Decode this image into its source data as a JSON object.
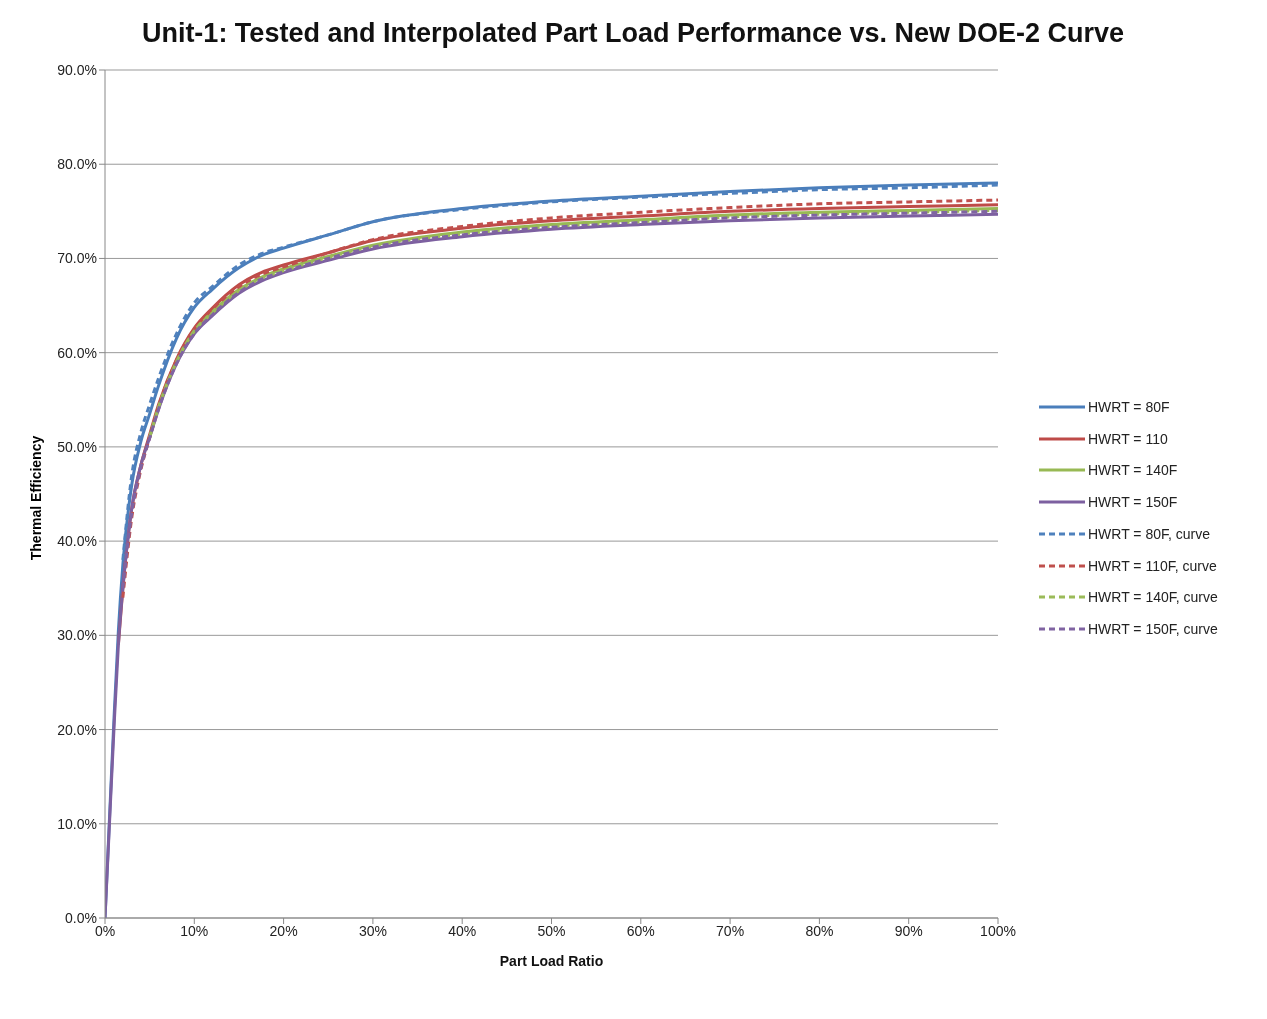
{
  "chart_data": {
    "type": "line",
    "title": "Unit-1: Tested and Interpolated Part Load Performance vs. New DOE-2 Curve",
    "xlabel": "Part Load Ratio",
    "ylabel": "Thermal Efficiency",
    "xlim": [
      0,
      100
    ],
    "ylim": [
      0,
      90
    ],
    "xticks": [
      {
        "value": 0,
        "label": "0%"
      },
      {
        "value": 10,
        "label": "10%"
      },
      {
        "value": 20,
        "label": "20%"
      },
      {
        "value": 30,
        "label": "30%"
      },
      {
        "value": 40,
        "label": "40%"
      },
      {
        "value": 50,
        "label": "50%"
      },
      {
        "value": 60,
        "label": "60%"
      },
      {
        "value": 70,
        "label": "70%"
      },
      {
        "value": 80,
        "label": "80%"
      },
      {
        "value": 90,
        "label": "90%"
      },
      {
        "value": 100,
        "label": "100%"
      }
    ],
    "yticks": [
      {
        "value": 0,
        "label": "0.0%"
      },
      {
        "value": 10,
        "label": "10.0%"
      },
      {
        "value": 20,
        "label": "20.0%"
      },
      {
        "value": 30,
        "label": "30.0%"
      },
      {
        "value": 40,
        "label": "40.0%"
      },
      {
        "value": 50,
        "label": "50.0%"
      },
      {
        "value": 60,
        "label": "60.0%"
      },
      {
        "value": 70,
        "label": "70.0%"
      },
      {
        "value": 80,
        "label": "80.0%"
      },
      {
        "value": 90,
        "label": "90.0%"
      }
    ],
    "grid": "y",
    "legend": "right",
    "series": [
      {
        "name": "HWRT = 80F",
        "color": "#4a7ebb",
        "line_style": "solid",
        "x": [
          0,
          0.5,
          1,
          1.5,
          2,
          3,
          4,
          5,
          6,
          8,
          10,
          12,
          15,
          17.5,
          20,
          25,
          30,
          40,
          50,
          60,
          70,
          80,
          90,
          100
        ],
        "values": [
          0,
          10.5,
          21,
          30.5,
          37.5,
          46,
          50.5,
          53.5,
          56.5,
          61.5,
          64.8,
          66.7,
          69,
          70.3,
          71.1,
          72.5,
          73.9,
          75.3,
          76.1,
          76.6,
          77.1,
          77.5,
          77.8,
          78.0
        ]
      },
      {
        "name": "HWRT = 110",
        "color": "#be4b48",
        "line_style": "solid",
        "x": [
          1.5,
          2,
          3,
          4,
          5,
          6,
          8,
          10,
          12,
          15,
          17.5,
          20,
          25,
          30,
          40,
          50,
          60,
          70,
          80,
          90,
          100
        ],
        "values": [
          29,
          35,
          43.5,
          48,
          51.3,
          54.5,
          59.3,
          62.6,
          64.7,
          67.2,
          68.5,
          69.3,
          70.6,
          71.9,
          73.2,
          74.0,
          74.5,
          75.0,
          75.3,
          75.5,
          75.7
        ]
      },
      {
        "name": "HWRT = 140F",
        "color": "#98b954",
        "line_style": "solid",
        "x": [
          5,
          6,
          8,
          10,
          12,
          15,
          17.5,
          20,
          25,
          30,
          40,
          50,
          60,
          70,
          80,
          90,
          100
        ],
        "values": [
          51,
          54.2,
          59,
          62.3,
          64.3,
          66.7,
          68,
          68.9,
          70.2,
          71.4,
          72.8,
          73.6,
          74.1,
          74.6,
          74.9,
          75.1,
          75.3
        ]
      },
      {
        "name": "HWRT = 150F",
        "color": "#7d60a0",
        "line_style": "solid",
        "x": [
          0,
          0.5,
          1,
          1.5,
          2,
          3,
          4,
          5,
          6,
          8,
          10,
          12,
          15,
          17.5,
          20,
          25,
          30,
          40,
          50,
          60,
          70,
          80,
          90,
          100
        ],
        "values": [
          0,
          10,
          20,
          29,
          35,
          43.5,
          48,
          51,
          54,
          58.8,
          62,
          63.9,
          66.3,
          67.6,
          68.5,
          69.8,
          71.0,
          72.3,
          73.1,
          73.6,
          74.0,
          74.3,
          74.5,
          74.7
        ]
      },
      {
        "name": "HWRT = 80F, curve",
        "color": "#4f81bd",
        "line_style": "dashed",
        "x": [
          2,
          3,
          4,
          5,
          6,
          8,
          10,
          12,
          15,
          17.5,
          20,
          25,
          30,
          40,
          50,
          60,
          70,
          80,
          90,
          100
        ],
        "values": [
          38,
          47,
          51.5,
          54.5,
          57.3,
          62,
          65.3,
          67,
          69.3,
          70.5,
          71.2,
          72.5,
          73.9,
          75.2,
          76.0,
          76.5,
          76.9,
          77.3,
          77.5,
          77.8
        ]
      },
      {
        "name": "HWRT = 110F, curve",
        "color": "#c0504d",
        "line_style": "dashed",
        "x": [
          2,
          3,
          4,
          5,
          6,
          8,
          10,
          12,
          15,
          17.5,
          20,
          25,
          30,
          40,
          50,
          60,
          70,
          80,
          90,
          100
        ],
        "values": [
          34,
          42.5,
          47.5,
          51,
          54.3,
          59.2,
          62.5,
          64.6,
          67,
          68.3,
          69.1,
          70.6,
          72.0,
          73.4,
          74.3,
          74.9,
          75.4,
          75.8,
          76.0,
          76.2
        ]
      },
      {
        "name": "HWRT = 140F, curve",
        "color": "#9bbb59",
        "line_style": "dashed",
        "x": [
          5,
          6,
          8,
          10,
          12,
          15,
          17.5,
          20,
          25,
          30,
          40,
          50,
          60,
          70,
          80,
          90,
          100
        ],
        "values": [
          51,
          54.2,
          59,
          62.3,
          64.2,
          66.6,
          67.9,
          68.7,
          70.1,
          71.3,
          72.6,
          73.4,
          73.9,
          74.4,
          74.7,
          74.9,
          75.1
        ]
      },
      {
        "name": "HWRT = 150F, curve",
        "color": "#8064a2",
        "line_style": "dashed",
        "x": [
          2,
          3,
          4,
          5,
          6,
          8,
          10,
          12,
          15,
          17.5,
          20,
          25,
          30,
          40,
          50,
          60,
          70,
          80,
          90,
          100
        ],
        "values": [
          35,
          43,
          47.7,
          50.9,
          54,
          58.8,
          62,
          64,
          66.4,
          67.8,
          68.6,
          70.0,
          71.2,
          72.5,
          73.3,
          73.8,
          74.3,
          74.6,
          74.8,
          75.0
        ]
      }
    ]
  }
}
